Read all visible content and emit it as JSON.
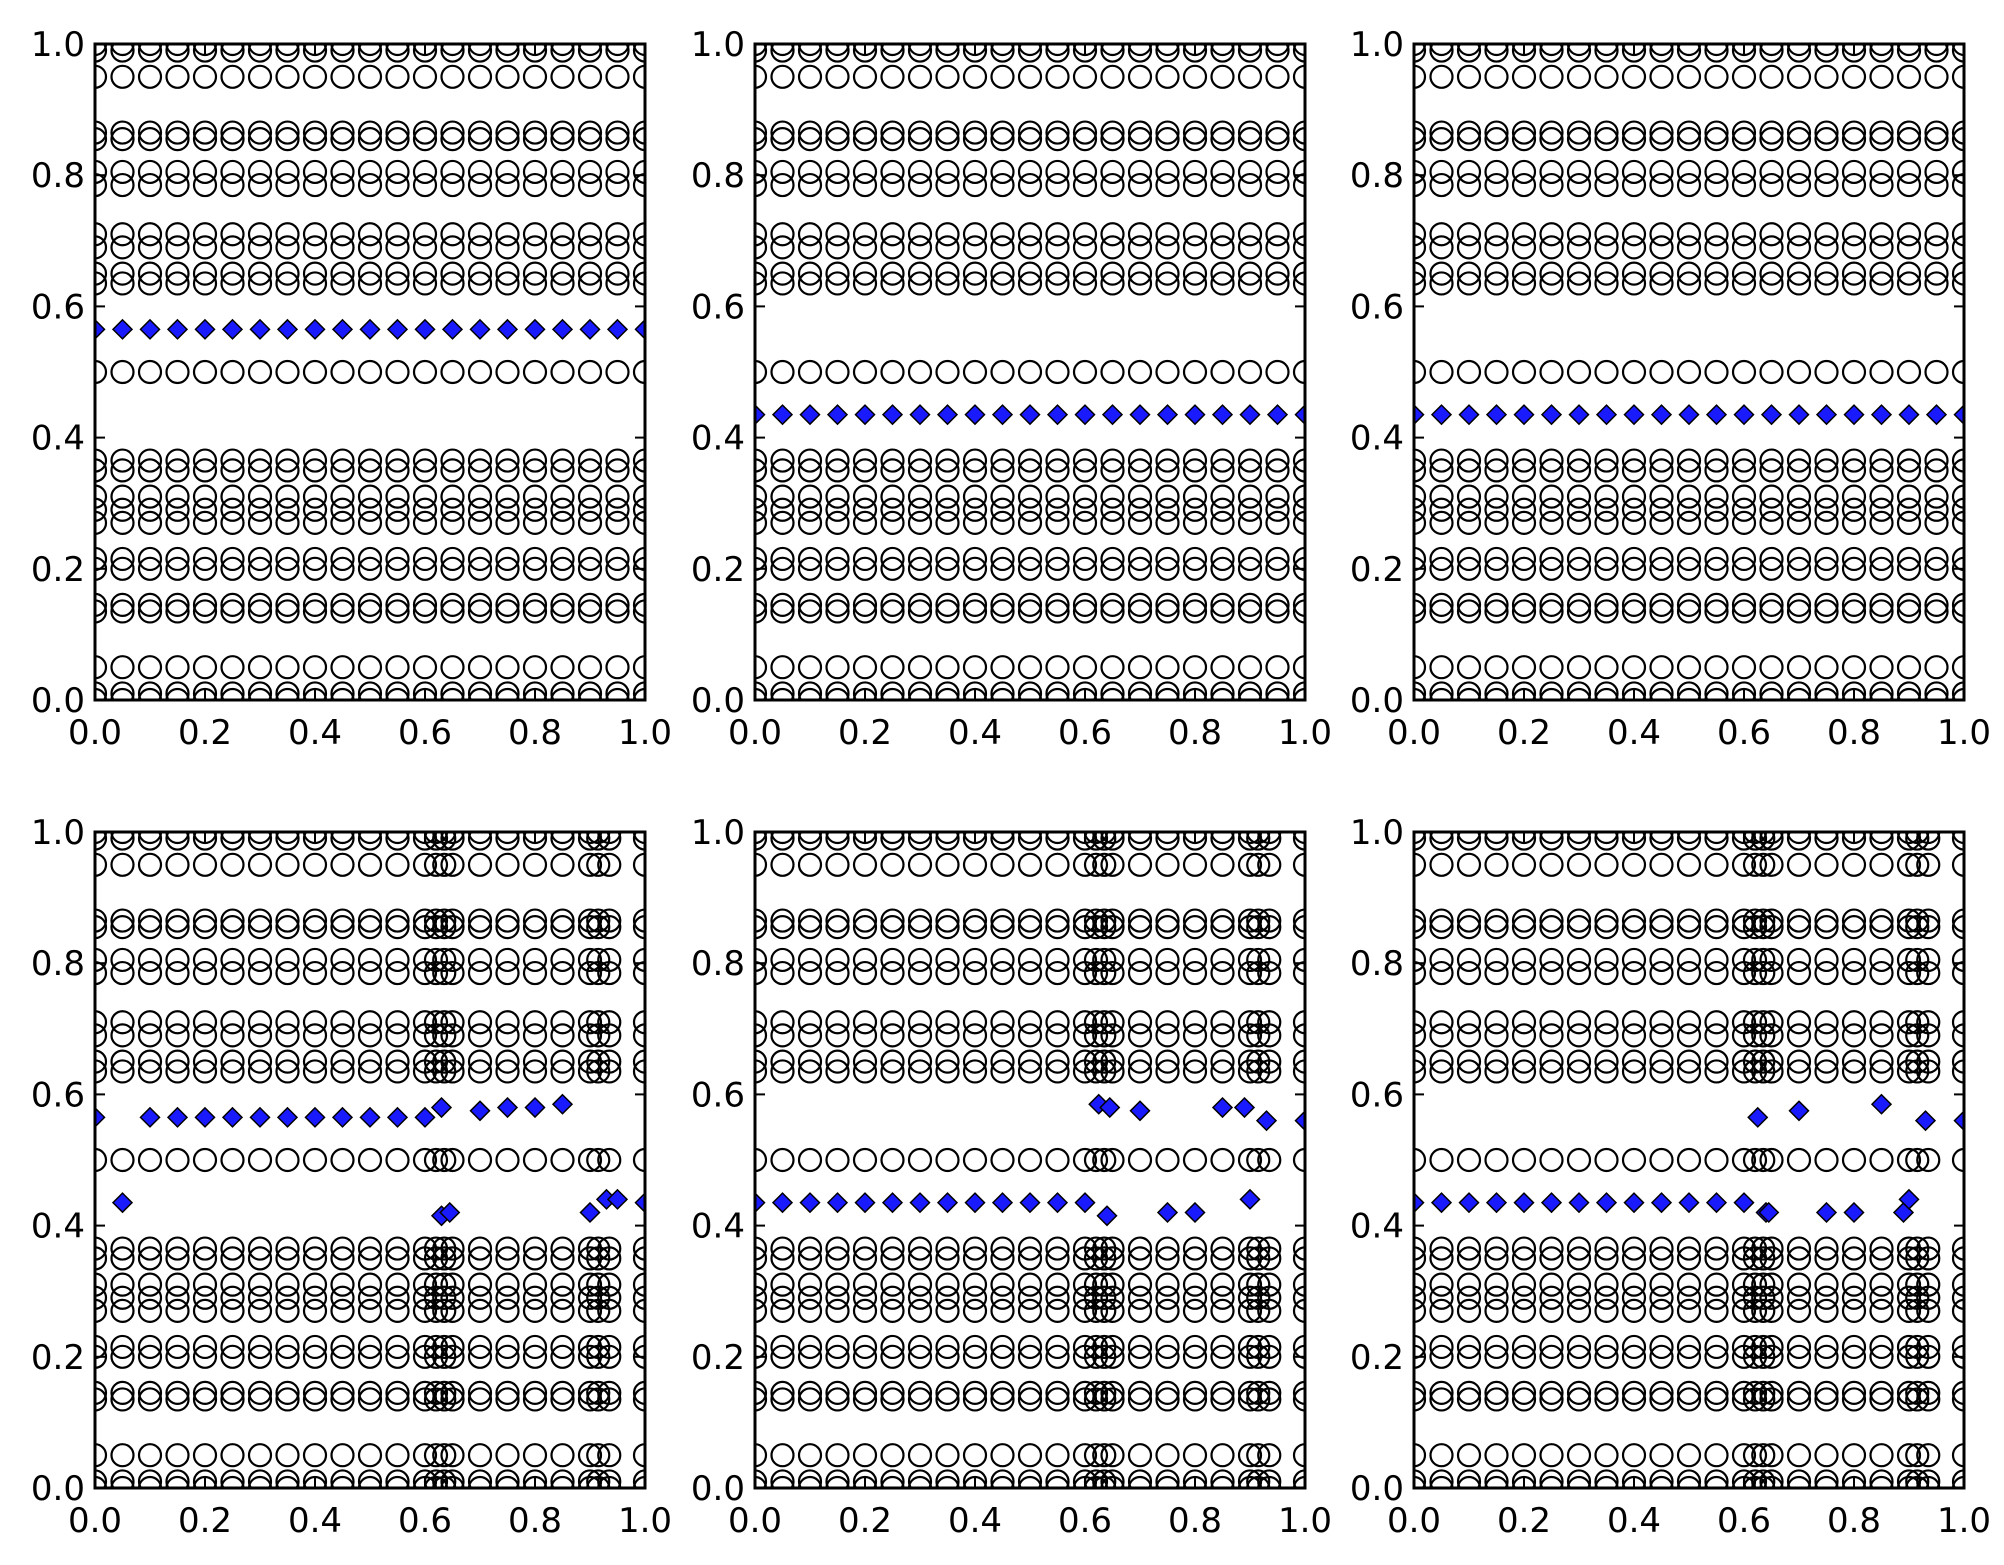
{
  "chart_data": [
    {
      "type": "scatter",
      "title": "",
      "xlabel": "",
      "ylabel": "",
      "xlim": [
        0,
        1
      ],
      "ylim": [
        0,
        1
      ],
      "x_ticks": [
        "0.0",
        "0.2",
        "0.4",
        "0.6",
        "0.8",
        "1.0"
      ],
      "y_ticks": [
        "0.0",
        "0.2",
        "0.4",
        "0.6",
        "0.8",
        "1.0"
      ],
      "background": {
        "marker": "open-circle",
        "color": "#000000",
        "x": [
          0.0,
          0.05,
          0.1,
          0.15,
          0.2,
          0.25,
          0.3,
          0.35,
          0.4,
          0.45,
          0.5,
          0.55,
          0.6,
          0.65,
          0.7,
          0.75,
          0.8,
          0.85,
          0.9,
          0.95,
          1.0
        ],
        "rows": [
          0.0,
          0.01,
          0.05,
          0.135,
          0.145,
          0.2,
          0.215,
          0.27,
          0.29,
          0.31,
          0.35,
          0.365,
          0.5,
          0.635,
          0.65,
          0.69,
          0.71,
          0.785,
          0.805,
          0.855,
          0.865,
          0.95,
          0.99,
          1.0
        ]
      },
      "series": [
        {
          "marker": "diamond",
          "color": "#1a1aff",
          "x": [
            0.0,
            0.05,
            0.1,
            0.15,
            0.2,
            0.25,
            0.3,
            0.35,
            0.4,
            0.45,
            0.5,
            0.55,
            0.6,
            0.65,
            0.7,
            0.75,
            0.8,
            0.85,
            0.9,
            0.95,
            1.0
          ],
          "y": [
            0.565,
            0.565,
            0.565,
            0.565,
            0.565,
            0.565,
            0.565,
            0.565,
            0.565,
            0.565,
            0.565,
            0.565,
            0.565,
            0.565,
            0.565,
            0.565,
            0.565,
            0.565,
            0.565,
            0.565,
            0.565
          ]
        }
      ]
    },
    {
      "type": "scatter",
      "title": "",
      "xlabel": "",
      "ylabel": "",
      "xlim": [
        0,
        1
      ],
      "ylim": [
        0,
        1
      ],
      "x_ticks": [
        "0.0",
        "0.2",
        "0.4",
        "0.6",
        "0.8",
        "1.0"
      ],
      "y_ticks": [
        "0.0",
        "0.2",
        "0.4",
        "0.6",
        "0.8",
        "1.0"
      ],
      "background": {
        "marker": "open-circle",
        "color": "#000000",
        "x": [
          0.0,
          0.05,
          0.1,
          0.15,
          0.2,
          0.25,
          0.3,
          0.35,
          0.4,
          0.45,
          0.5,
          0.55,
          0.6,
          0.65,
          0.7,
          0.75,
          0.8,
          0.85,
          0.9,
          0.95,
          1.0
        ],
        "rows": [
          0.0,
          0.01,
          0.05,
          0.135,
          0.145,
          0.2,
          0.215,
          0.27,
          0.29,
          0.31,
          0.35,
          0.365,
          0.5,
          0.635,
          0.65,
          0.69,
          0.71,
          0.785,
          0.805,
          0.855,
          0.865,
          0.95,
          0.99,
          1.0
        ]
      },
      "series": [
        {
          "marker": "diamond",
          "color": "#1a1aff",
          "x": [
            0.0,
            0.05,
            0.1,
            0.15,
            0.2,
            0.25,
            0.3,
            0.35,
            0.4,
            0.45,
            0.5,
            0.55,
            0.6,
            0.65,
            0.7,
            0.75,
            0.8,
            0.85,
            0.9,
            0.95,
            1.0
          ],
          "y": [
            0.435,
            0.435,
            0.435,
            0.435,
            0.435,
            0.435,
            0.435,
            0.435,
            0.435,
            0.435,
            0.435,
            0.435,
            0.435,
            0.435,
            0.435,
            0.435,
            0.435,
            0.435,
            0.435,
            0.435,
            0.435
          ]
        }
      ]
    },
    {
      "type": "scatter",
      "title": "",
      "xlabel": "",
      "ylabel": "",
      "xlim": [
        0,
        1
      ],
      "ylim": [
        0,
        1
      ],
      "x_ticks": [
        "0.0",
        "0.2",
        "0.4",
        "0.6",
        "0.8",
        "1.0"
      ],
      "y_ticks": [
        "0.0",
        "0.2",
        "0.4",
        "0.6",
        "0.8",
        "1.0"
      ],
      "background": {
        "marker": "open-circle",
        "color": "#000000",
        "x": [
          0.0,
          0.05,
          0.1,
          0.15,
          0.2,
          0.25,
          0.3,
          0.35,
          0.4,
          0.45,
          0.5,
          0.55,
          0.6,
          0.65,
          0.7,
          0.75,
          0.8,
          0.85,
          0.9,
          0.95,
          1.0
        ],
        "rows": [
          0.0,
          0.01,
          0.05,
          0.135,
          0.145,
          0.2,
          0.215,
          0.27,
          0.29,
          0.31,
          0.35,
          0.365,
          0.5,
          0.635,
          0.65,
          0.69,
          0.71,
          0.785,
          0.805,
          0.855,
          0.865,
          0.95,
          0.99,
          1.0
        ]
      },
      "series": [
        {
          "marker": "diamond",
          "color": "#1a1aff",
          "x": [
            0.0,
            0.05,
            0.1,
            0.15,
            0.2,
            0.25,
            0.3,
            0.35,
            0.4,
            0.45,
            0.5,
            0.55,
            0.6,
            0.65,
            0.7,
            0.75,
            0.8,
            0.85,
            0.9,
            0.95,
            1.0
          ],
          "y": [
            0.435,
            0.435,
            0.435,
            0.435,
            0.435,
            0.435,
            0.435,
            0.435,
            0.435,
            0.435,
            0.435,
            0.435,
            0.435,
            0.435,
            0.435,
            0.435,
            0.435,
            0.435,
            0.435,
            0.435,
            0.435
          ]
        }
      ]
    },
    {
      "type": "scatter",
      "title": "",
      "xlabel": "",
      "ylabel": "",
      "xlim": [
        0,
        1
      ],
      "ylim": [
        0,
        1
      ],
      "x_ticks": [
        "0.0",
        "0.2",
        "0.4",
        "0.6",
        "0.8",
        "1.0"
      ],
      "y_ticks": [
        "0.0",
        "0.2",
        "0.4",
        "0.6",
        "0.8",
        "1.0"
      ],
      "background": {
        "marker": "open-circle",
        "color": "#000000",
        "x": [
          0.0,
          0.05,
          0.1,
          0.15,
          0.2,
          0.25,
          0.3,
          0.35,
          0.4,
          0.45,
          0.5,
          0.55,
          0.6,
          0.62,
          0.635,
          0.65,
          0.7,
          0.75,
          0.8,
          0.85,
          0.9,
          0.915,
          0.935,
          1.0
        ],
        "rows": [
          0.0,
          0.01,
          0.05,
          0.135,
          0.145,
          0.2,
          0.215,
          0.27,
          0.29,
          0.31,
          0.35,
          0.365,
          0.5,
          0.635,
          0.65,
          0.69,
          0.71,
          0.785,
          0.805,
          0.855,
          0.865,
          0.95,
          0.99,
          1.0
        ]
      },
      "series": [
        {
          "marker": "diamond",
          "color": "#1a1aff",
          "x": [
            0.0,
            0.05,
            0.1,
            0.15,
            0.2,
            0.25,
            0.3,
            0.35,
            0.4,
            0.45,
            0.5,
            0.55,
            0.6,
            0.63,
            0.63,
            0.645,
            0.7,
            0.75,
            0.8,
            0.85,
            0.9,
            0.93,
            0.95,
            1.0
          ],
          "y": [
            0.565,
            0.435,
            0.565,
            0.565,
            0.565,
            0.565,
            0.565,
            0.565,
            0.565,
            0.565,
            0.565,
            0.565,
            0.565,
            0.58,
            0.415,
            0.42,
            0.575,
            0.58,
            0.58,
            0.585,
            0.42,
            0.44,
            0.44,
            0.435
          ]
        }
      ]
    },
    {
      "type": "scatter",
      "title": "",
      "xlabel": "",
      "ylabel": "",
      "xlim": [
        0,
        1
      ],
      "ylim": [
        0,
        1
      ],
      "x_ticks": [
        "0.0",
        "0.2",
        "0.4",
        "0.6",
        "0.8",
        "1.0"
      ],
      "y_ticks": [
        "0.0",
        "0.2",
        "0.4",
        "0.6",
        "0.8",
        "1.0"
      ],
      "background": {
        "marker": "open-circle",
        "color": "#000000",
        "x": [
          0.0,
          0.05,
          0.1,
          0.15,
          0.2,
          0.25,
          0.3,
          0.35,
          0.4,
          0.45,
          0.5,
          0.55,
          0.6,
          0.62,
          0.635,
          0.65,
          0.7,
          0.75,
          0.8,
          0.85,
          0.9,
          0.915,
          0.935,
          1.0
        ],
        "rows": [
          0.0,
          0.01,
          0.05,
          0.135,
          0.145,
          0.2,
          0.215,
          0.27,
          0.29,
          0.31,
          0.35,
          0.365,
          0.5,
          0.635,
          0.65,
          0.69,
          0.71,
          0.785,
          0.805,
          0.855,
          0.865,
          0.95,
          0.99,
          1.0
        ]
      },
      "series": [
        {
          "marker": "diamond",
          "color": "#1a1aff",
          "x": [
            0.0,
            0.05,
            0.1,
            0.15,
            0.2,
            0.25,
            0.3,
            0.35,
            0.4,
            0.45,
            0.5,
            0.55,
            0.6,
            0.625,
            0.64,
            0.645,
            0.7,
            0.75,
            0.8,
            0.85,
            0.89,
            0.9,
            0.93,
            1.0
          ],
          "y": [
            0.435,
            0.435,
            0.435,
            0.435,
            0.435,
            0.435,
            0.435,
            0.435,
            0.435,
            0.435,
            0.435,
            0.435,
            0.435,
            0.585,
            0.415,
            0.58,
            0.575,
            0.42,
            0.42,
            0.58,
            0.58,
            0.44,
            0.56,
            0.56
          ]
        }
      ]
    },
    {
      "type": "scatter",
      "title": "",
      "xlabel": "",
      "ylabel": "",
      "xlim": [
        0,
        1
      ],
      "ylim": [
        0,
        1
      ],
      "x_ticks": [
        "0.0",
        "0.2",
        "0.4",
        "0.6",
        "0.8",
        "1.0"
      ],
      "y_ticks": [
        "0.0",
        "0.2",
        "0.4",
        "0.6",
        "0.8",
        "1.0"
      ],
      "background": {
        "marker": "open-circle",
        "color": "#000000",
        "x": [
          0.0,
          0.05,
          0.1,
          0.15,
          0.2,
          0.25,
          0.3,
          0.35,
          0.4,
          0.45,
          0.5,
          0.55,
          0.6,
          0.62,
          0.635,
          0.65,
          0.7,
          0.75,
          0.8,
          0.85,
          0.9,
          0.915,
          0.935,
          1.0
        ],
        "rows": [
          0.0,
          0.01,
          0.05,
          0.135,
          0.145,
          0.2,
          0.215,
          0.27,
          0.29,
          0.31,
          0.35,
          0.365,
          0.5,
          0.635,
          0.65,
          0.69,
          0.71,
          0.785,
          0.805,
          0.855,
          0.865,
          0.95,
          0.99,
          1.0
        ]
      },
      "series": [
        {
          "marker": "diamond",
          "color": "#1a1aff",
          "x": [
            0.0,
            0.05,
            0.1,
            0.15,
            0.2,
            0.25,
            0.3,
            0.35,
            0.4,
            0.45,
            0.5,
            0.55,
            0.6,
            0.625,
            0.64,
            0.645,
            0.7,
            0.75,
            0.8,
            0.85,
            0.89,
            0.9,
            0.93,
            1.0
          ],
          "y": [
            0.435,
            0.435,
            0.435,
            0.435,
            0.435,
            0.435,
            0.435,
            0.435,
            0.435,
            0.435,
            0.435,
            0.435,
            0.435,
            0.565,
            0.42,
            0.42,
            0.575,
            0.42,
            0.42,
            0.585,
            0.42,
            0.44,
            0.56,
            0.56
          ]
        }
      ]
    }
  ]
}
